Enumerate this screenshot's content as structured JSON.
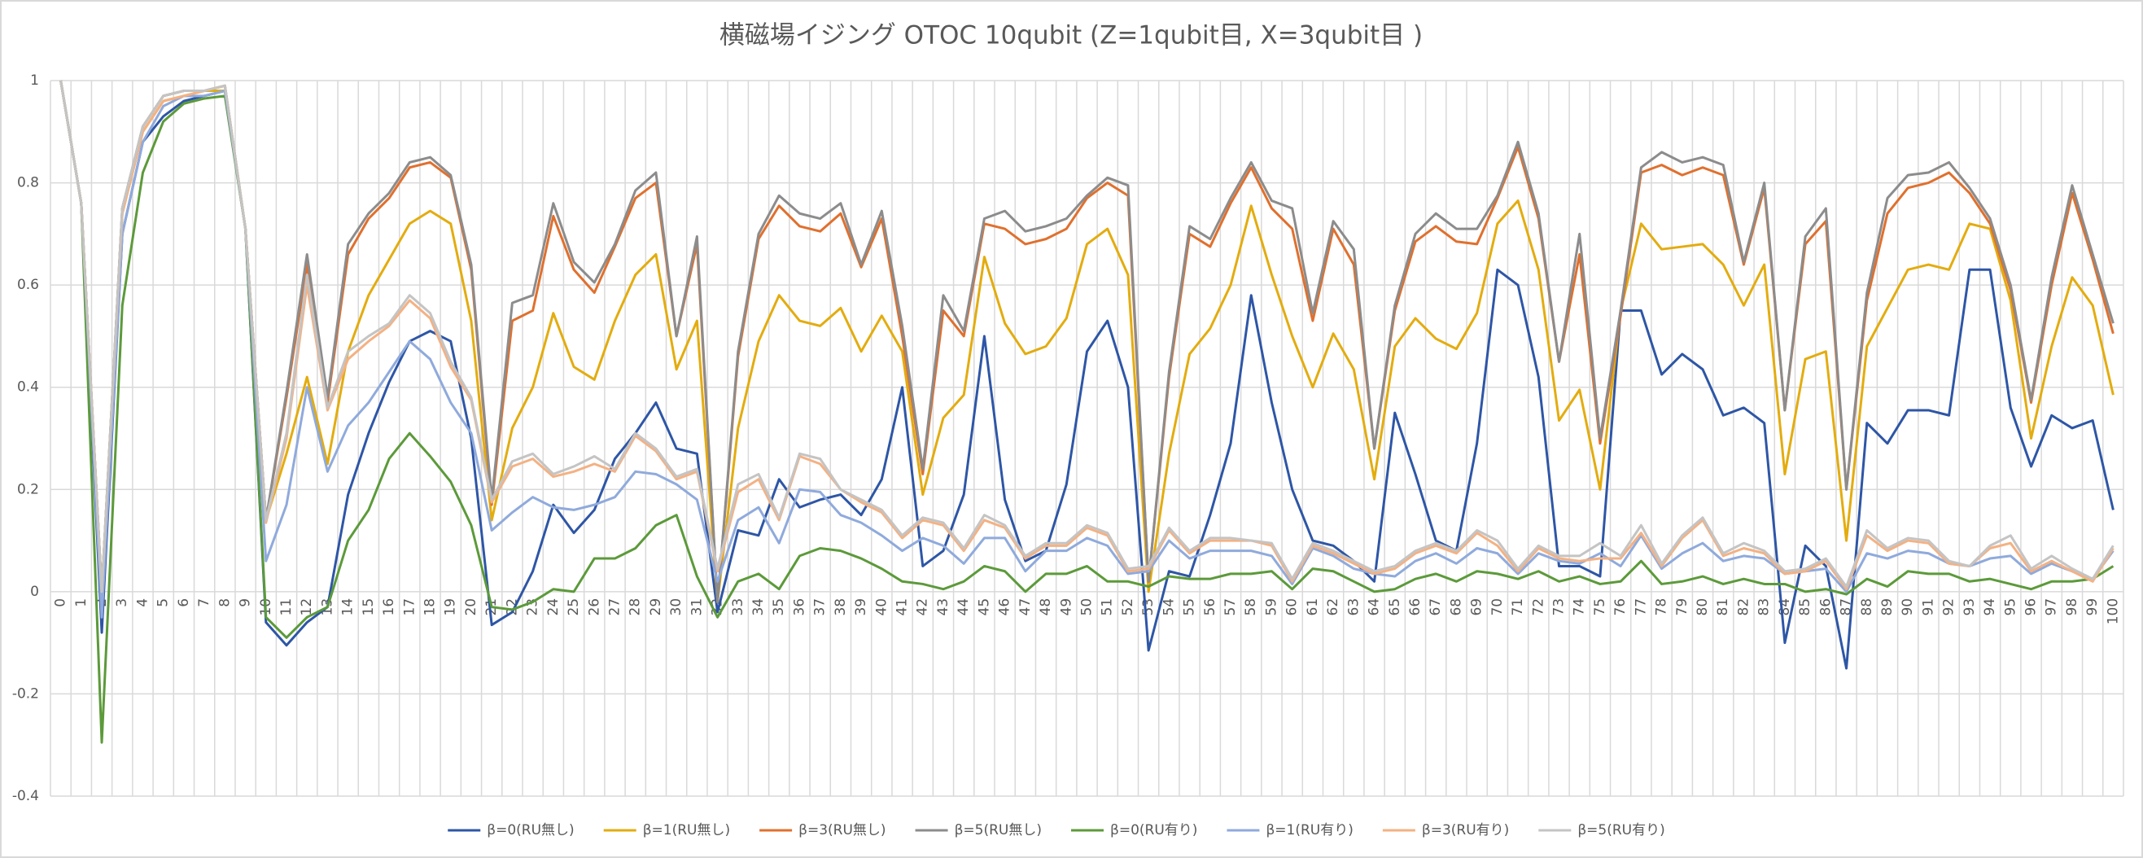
{
  "chart_data": {
    "type": "line",
    "title": "横磁場イジング OTOC 10qubit (Z=1qubit目, X=3qubit目 )",
    "categories": [
      0,
      1,
      2,
      3,
      4,
      5,
      6,
      7,
      8,
      9,
      10,
      11,
      12,
      13,
      14,
      15,
      16,
      17,
      18,
      19,
      20,
      21,
      22,
      23,
      24,
      25,
      26,
      27,
      28,
      29,
      30,
      31,
      32,
      33,
      34,
      35,
      36,
      37,
      38,
      39,
      40,
      41,
      42,
      43,
      44,
      45,
      46,
      47,
      48,
      49,
      50,
      51,
      52,
      53,
      54,
      55,
      56,
      57,
      58,
      59,
      60,
      61,
      62,
      63,
      64,
      65,
      66,
      67,
      68,
      69,
      70,
      71,
      72,
      73,
      74,
      75,
      76,
      77,
      78,
      79,
      80,
      81,
      82,
      83,
      84,
      85,
      86,
      87,
      88,
      89,
      90,
      91,
      92,
      93,
      94,
      95,
      96,
      97,
      98,
      99,
      100
    ],
    "ylim": [
      -0.4,
      1
    ],
    "yticks": [
      -0.4,
      -0.2,
      0,
      0.2,
      0.4,
      0.6,
      0.8,
      1
    ],
    "grid": true,
    "legend": "bottom",
    "series": [
      {
        "name": "β=0(RU無し)",
        "color": "#2e56a6",
        "values": [
          1,
          0.76,
          -0.08,
          0.7,
          0.88,
          0.93,
          0.96,
          0.97,
          0.98,
          0.71,
          -0.06,
          -0.105,
          -0.06,
          -0.03,
          0.19,
          0.31,
          0.41,
          0.49,
          0.51,
          0.49,
          0.3,
          -0.065,
          -0.04,
          0.04,
          0.17,
          0.115,
          0.16,
          0.26,
          0.31,
          0.37,
          0.28,
          0.27,
          -0.04,
          0.12,
          0.11,
          0.22,
          0.165,
          0.18,
          0.19,
          0.15,
          0.22,
          0.4,
          0.05,
          0.08,
          0.19,
          0.5,
          0.18,
          0.06,
          0.08,
          0.21,
          0.47,
          0.53,
          0.4,
          -0.115,
          0.04,
          0.03,
          0.15,
          0.29,
          0.58,
          0.37,
          0.2,
          0.1,
          0.09,
          0.06,
          0.02,
          0.35,
          0.23,
          0.1,
          0.08,
          0.29,
          0.63,
          0.6,
          0.42,
          0.05,
          0.05,
          0.03,
          0.55,
          0.55,
          0.425,
          0.465,
          0.435,
          0.345,
          0.36,
          0.33,
          -0.1,
          0.09,
          0.05,
          -0.15,
          0.33,
          0.29,
          0.355,
          0.355,
          0.345,
          0.63,
          0.63,
          0.36,
          0.245,
          0.345,
          0.32,
          0.335,
          0.16
        ]
      },
      {
        "name": "β=1(RU無し)",
        "color": "#e3ac0f",
        "values": [
          1,
          0.76,
          0.0,
          0.74,
          0.9,
          0.96,
          0.97,
          0.98,
          0.98,
          0.71,
          0.14,
          0.27,
          0.42,
          0.25,
          0.47,
          0.58,
          0.65,
          0.72,
          0.745,
          0.72,
          0.53,
          0.14,
          0.32,
          0.4,
          0.545,
          0.44,
          0.415,
          0.53,
          0.62,
          0.66,
          0.435,
          0.53,
          -0.02,
          0.32,
          0.49,
          0.58,
          0.53,
          0.52,
          0.555,
          0.47,
          0.54,
          0.47,
          0.19,
          0.34,
          0.385,
          0.655,
          0.525,
          0.465,
          0.48,
          0.535,
          0.68,
          0.71,
          0.62,
          0.0,
          0.27,
          0.465,
          0.515,
          0.6,
          0.755,
          0.62,
          0.5,
          0.4,
          0.505,
          0.435,
          0.22,
          0.48,
          0.535,
          0.495,
          0.475,
          0.545,
          0.72,
          0.765,
          0.63,
          0.335,
          0.395,
          0.2,
          0.55,
          0.72,
          0.67,
          0.675,
          0.68,
          0.64,
          0.56,
          0.64,
          0.23,
          0.455,
          0.47,
          0.1,
          0.48,
          0.555,
          0.63,
          0.64,
          0.63,
          0.72,
          0.71,
          0.57,
          0.3,
          0.48,
          0.615,
          0.56,
          0.385
        ]
      },
      {
        "name": "β=3(RU無し)",
        "color": "#e0702e",
        "values": [
          1,
          0.76,
          0.0,
          0.75,
          0.91,
          0.97,
          0.98,
          0.98,
          0.99,
          0.71,
          0.14,
          0.38,
          0.64,
          0.37,
          0.66,
          0.73,
          0.77,
          0.83,
          0.84,
          0.81,
          0.63,
          0.17,
          0.53,
          0.55,
          0.735,
          0.63,
          0.585,
          0.675,
          0.77,
          0.8,
          0.5,
          0.68,
          -0.02,
          0.46,
          0.69,
          0.755,
          0.715,
          0.705,
          0.74,
          0.635,
          0.73,
          0.5,
          0.23,
          0.55,
          0.5,
          0.72,
          0.71,
          0.68,
          0.69,
          0.71,
          0.77,
          0.8,
          0.775,
          0.02,
          0.42,
          0.7,
          0.675,
          0.76,
          0.83,
          0.75,
          0.71,
          0.53,
          0.71,
          0.64,
          0.28,
          0.55,
          0.685,
          0.715,
          0.685,
          0.68,
          0.77,
          0.87,
          0.73,
          0.45,
          0.66,
          0.29,
          0.54,
          0.82,
          0.835,
          0.815,
          0.83,
          0.815,
          0.64,
          0.79,
          0.355,
          0.68,
          0.725,
          0.2,
          0.57,
          0.74,
          0.79,
          0.8,
          0.82,
          0.78,
          0.72,
          0.59,
          0.37,
          0.6,
          0.78,
          0.65,
          0.505
        ]
      },
      {
        "name": "β=5(RU無し)",
        "color": "#8c8c8c",
        "values": [
          1,
          0.76,
          0.0,
          0.75,
          0.91,
          0.97,
          0.98,
          0.98,
          0.99,
          0.71,
          0.14,
          0.39,
          0.66,
          0.38,
          0.68,
          0.74,
          0.78,
          0.84,
          0.85,
          0.815,
          0.64,
          0.18,
          0.565,
          0.58,
          0.76,
          0.645,
          0.605,
          0.68,
          0.785,
          0.82,
          0.5,
          0.695,
          -0.02,
          0.47,
          0.7,
          0.775,
          0.74,
          0.73,
          0.76,
          0.64,
          0.745,
          0.52,
          0.24,
          0.58,
          0.51,
          0.73,
          0.745,
          0.705,
          0.715,
          0.73,
          0.775,
          0.81,
          0.795,
          0.02,
          0.43,
          0.715,
          0.69,
          0.77,
          0.84,
          0.765,
          0.75,
          0.545,
          0.725,
          0.67,
          0.28,
          0.56,
          0.7,
          0.74,
          0.71,
          0.71,
          0.775,
          0.88,
          0.74,
          0.45,
          0.7,
          0.3,
          0.55,
          0.83,
          0.86,
          0.84,
          0.85,
          0.835,
          0.645,
          0.8,
          0.355,
          0.695,
          0.75,
          0.2,
          0.585,
          0.77,
          0.815,
          0.82,
          0.84,
          0.79,
          0.73,
          0.6,
          0.375,
          0.615,
          0.795,
          0.66,
          0.525
        ]
      },
      {
        "name": "β=0(RU有り)",
        "color": "#5c9a3a",
        "values": [
          1,
          0.76,
          -0.295,
          0.56,
          0.82,
          0.92,
          0.955,
          0.965,
          0.97,
          0.71,
          -0.05,
          -0.09,
          -0.05,
          -0.03,
          0.1,
          0.16,
          0.26,
          0.31,
          0.265,
          0.215,
          0.13,
          -0.03,
          -0.035,
          -0.02,
          0.005,
          0.0,
          0.065,
          0.065,
          0.085,
          0.13,
          0.15,
          0.03,
          -0.05,
          0.02,
          0.035,
          0.005,
          0.07,
          0.085,
          0.08,
          0.065,
          0.045,
          0.02,
          0.015,
          0.005,
          0.02,
          0.05,
          0.04,
          0.0,
          0.035,
          0.035,
          0.05,
          0.02,
          0.02,
          0.01,
          0.03,
          0.025,
          0.025,
          0.035,
          0.035,
          0.04,
          0.005,
          0.045,
          0.04,
          0.02,
          0.0,
          0.005,
          0.025,
          0.035,
          0.02,
          0.04,
          0.035,
          0.025,
          0.04,
          0.02,
          0.03,
          0.015,
          0.02,
          0.06,
          0.015,
          0.02,
          0.03,
          0.015,
          0.025,
          0.015,
          0.015,
          0.0,
          0.005,
          -0.005,
          0.025,
          0.01,
          0.04,
          0.035,
          0.035,
          0.02,
          0.025,
          0.015,
          0.005,
          0.02,
          0.02,
          0.025,
          0.05
        ]
      },
      {
        "name": "β=1(RU有り)",
        "color": "#8faadc",
        "values": [
          1,
          0.76,
          -0.05,
          0.7,
          0.88,
          0.95,
          0.97,
          0.97,
          0.98,
          0.71,
          0.06,
          0.17,
          0.4,
          0.235,
          0.325,
          0.37,
          0.43,
          0.49,
          0.455,
          0.37,
          0.31,
          0.12,
          0.155,
          0.185,
          0.165,
          0.16,
          0.17,
          0.185,
          0.235,
          0.23,
          0.21,
          0.18,
          0.02,
          0.14,
          0.165,
          0.095,
          0.2,
          0.195,
          0.15,
          0.135,
          0.11,
          0.08,
          0.105,
          0.09,
          0.055,
          0.105,
          0.105,
          0.04,
          0.08,
          0.08,
          0.105,
          0.09,
          0.035,
          0.04,
          0.1,
          0.065,
          0.08,
          0.08,
          0.08,
          0.07,
          0.015,
          0.085,
          0.07,
          0.045,
          0.035,
          0.03,
          0.06,
          0.075,
          0.055,
          0.085,
          0.075,
          0.035,
          0.075,
          0.06,
          0.055,
          0.075,
          0.05,
          0.11,
          0.045,
          0.075,
          0.095,
          0.06,
          0.07,
          0.065,
          0.035,
          0.04,
          0.045,
          0.0,
          0.075,
          0.065,
          0.08,
          0.075,
          0.055,
          0.05,
          0.065,
          0.07,
          0.035,
          0.055,
          0.04,
          0.025,
          0.08
        ]
      },
      {
        "name": "β=3(RU有り)",
        "color": "#f4b183",
        "values": [
          1,
          0.76,
          0.0,
          0.74,
          0.9,
          0.96,
          0.97,
          0.98,
          0.99,
          0.71,
          0.135,
          0.3,
          0.6,
          0.355,
          0.455,
          0.49,
          0.52,
          0.57,
          0.535,
          0.44,
          0.375,
          0.175,
          0.245,
          0.26,
          0.225,
          0.235,
          0.25,
          0.235,
          0.305,
          0.275,
          0.22,
          0.235,
          0.04,
          0.195,
          0.22,
          0.14,
          0.265,
          0.25,
          0.2,
          0.175,
          0.155,
          0.105,
          0.14,
          0.13,
          0.08,
          0.14,
          0.125,
          0.065,
          0.09,
          0.09,
          0.125,
          0.11,
          0.04,
          0.045,
          0.12,
          0.075,
          0.1,
          0.1,
          0.1,
          0.09,
          0.02,
          0.09,
          0.075,
          0.055,
          0.035,
          0.045,
          0.075,
          0.09,
          0.075,
          0.115,
          0.09,
          0.04,
          0.085,
          0.065,
          0.06,
          0.065,
          0.065,
          0.115,
          0.05,
          0.105,
          0.14,
          0.07,
          0.085,
          0.075,
          0.035,
          0.04,
          0.06,
          0.005,
          0.11,
          0.08,
          0.1,
          0.095,
          0.055,
          0.05,
          0.085,
          0.095,
          0.04,
          0.06,
          0.04,
          0.02,
          0.085
        ]
      },
      {
        "name": "β=5(RU有り)",
        "color": "#c4c4c4",
        "values": [
          1,
          0.76,
          0.0,
          0.75,
          0.91,
          0.97,
          0.98,
          0.98,
          0.99,
          0.71,
          0.14,
          0.31,
          0.62,
          0.36,
          0.47,
          0.5,
          0.525,
          0.58,
          0.545,
          0.45,
          0.38,
          0.18,
          0.255,
          0.27,
          0.23,
          0.245,
          0.265,
          0.24,
          0.31,
          0.28,
          0.225,
          0.24,
          0.045,
          0.21,
          0.23,
          0.145,
          0.27,
          0.26,
          0.2,
          0.18,
          0.16,
          0.11,
          0.145,
          0.135,
          0.085,
          0.15,
          0.13,
          0.07,
          0.095,
          0.095,
          0.13,
          0.115,
          0.045,
          0.05,
          0.125,
          0.08,
          0.105,
          0.105,
          0.1,
          0.095,
          0.025,
          0.095,
          0.08,
          0.06,
          0.04,
          0.05,
          0.08,
          0.095,
          0.08,
          0.12,
          0.1,
          0.045,
          0.09,
          0.07,
          0.07,
          0.095,
          0.07,
          0.13,
          0.055,
          0.11,
          0.145,
          0.075,
          0.095,
          0.08,
          0.04,
          0.045,
          0.065,
          0.01,
          0.12,
          0.085,
          0.105,
          0.1,
          0.06,
          0.05,
          0.09,
          0.11,
          0.045,
          0.07,
          0.045,
          0.025,
          0.09
        ]
      }
    ]
  }
}
